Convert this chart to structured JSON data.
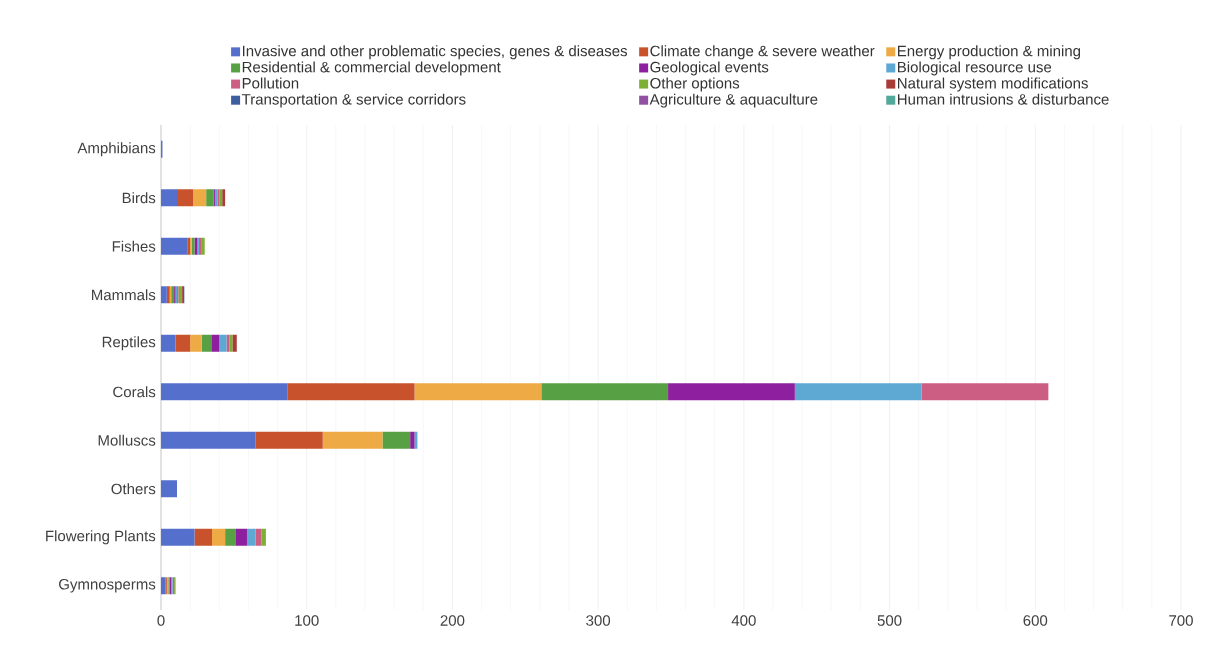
{
  "chart_data": {
    "type": "bar",
    "orientation": "horizontal",
    "stacked": true,
    "legend": "top",
    "grid": "x",
    "categories": [
      "Amphibians",
      "Birds",
      "Fishes",
      "Mammals",
      "Reptiles",
      "Corals",
      "Molluscs",
      "Others",
      "Flowering Plants",
      "Gymnosperms"
    ],
    "xlim": [
      0,
      700
    ],
    "xticks": [
      0,
      100,
      200,
      300,
      400,
      500,
      600,
      700
    ],
    "series": [
      {
        "name": "Invasive and other problematic species, genes & diseases",
        "color": "#5470cc",
        "values": [
          1,
          11,
          18,
          4,
          10,
          87,
          65,
          11,
          23,
          3
        ]
      },
      {
        "name": "Climate change & severe weather",
        "color": "#c8522c",
        "values": [
          0,
          11,
          2,
          2,
          10,
          87,
          46,
          0,
          12,
          1
        ]
      },
      {
        "name": "Energy production & mining",
        "color": "#eeaa44",
        "values": [
          0,
          9,
          1,
          1,
          8,
          87,
          41,
          0,
          9,
          1
        ]
      },
      {
        "name": "Residential & commercial development",
        "color": "#58a044",
        "values": [
          0,
          5,
          2,
          2,
          7,
          87,
          19,
          0,
          7,
          1
        ]
      },
      {
        "name": "Geological events",
        "color": "#8e1f9e",
        "values": [
          0,
          1,
          2,
          1,
          5,
          87,
          3,
          0,
          8,
          1
        ]
      },
      {
        "name": "Biological resource use",
        "color": "#5ea8d4",
        "values": [
          0,
          2,
          1,
          1,
          5,
          87,
          2,
          0,
          6,
          1
        ]
      },
      {
        "name": "Pollution",
        "color": "#cc5e84",
        "values": [
          0,
          1,
          2,
          1,
          2,
          87,
          0,
          0,
          4,
          1
        ]
      },
      {
        "name": "Other options",
        "color": "#7cb034",
        "values": [
          0,
          2,
          2,
          2,
          2,
          0,
          0,
          0,
          3,
          1
        ]
      },
      {
        "name": "Natural system modifications",
        "color": "#a83c38",
        "values": [
          0,
          2,
          0,
          1,
          3,
          0,
          0,
          0,
          0,
          0
        ]
      },
      {
        "name": "Transportation & service corridors",
        "color": "#3e5f9e",
        "values": [
          0,
          0,
          0,
          1,
          0,
          0,
          0,
          0,
          0,
          0
        ]
      },
      {
        "name": "Agriculture & aquaculture",
        "color": "#9250a2",
        "values": [
          0,
          0,
          0,
          0,
          0,
          0,
          0,
          0,
          0,
          0
        ]
      },
      {
        "name": "Human intrusions & disturbance",
        "color": "#52a89a",
        "values": [
          0,
          0,
          0,
          0,
          0,
          0,
          0,
          0,
          0,
          0
        ]
      }
    ]
  }
}
